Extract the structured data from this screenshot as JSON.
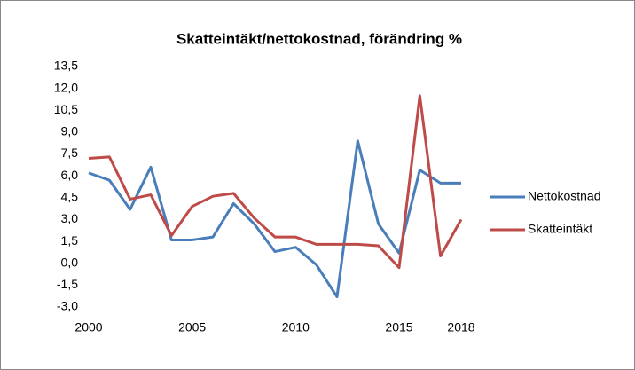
{
  "chart_data": {
    "type": "line",
    "title": "Skatteintäkt/nettokostnad, förändring %",
    "x": [
      2000,
      2001,
      2002,
      2003,
      2004,
      2005,
      2006,
      2007,
      2008,
      2009,
      2010,
      2011,
      2012,
      2013,
      2014,
      2015,
      2016,
      2017,
      2018
    ],
    "series": [
      {
        "name": "Nettokostnad",
        "color": "#4a7ebb",
        "values": [
          6.2,
          5.7,
          3.7,
          6.6,
          1.6,
          1.6,
          1.8,
          4.1,
          2.7,
          0.8,
          1.1,
          -0.1,
          -2.3,
          8.4,
          2.7,
          0.7,
          6.4,
          5.5,
          5.5
        ]
      },
      {
        "name": "Skatteintäkt",
        "color": "#be4b48",
        "values": [
          7.2,
          7.3,
          4.4,
          4.7,
          1.9,
          3.9,
          4.6,
          4.8,
          3.1,
          1.8,
          1.8,
          1.3,
          1.3,
          1.3,
          1.2,
          -0.3,
          11.5,
          0.5,
          3.0
        ]
      }
    ],
    "xlim": [
      2000,
      2018
    ],
    "xticks": [
      2000,
      2005,
      2010,
      2015,
      2018
    ],
    "ylim": [
      -3,
      13.5
    ],
    "yticks": [
      {
        "value": -3,
        "label": "-3,0"
      },
      {
        "value": -1.5,
        "label": "-1,5"
      },
      {
        "value": 0,
        "label": "0,0"
      },
      {
        "value": 1.5,
        "label": "1,5"
      },
      {
        "value": 3,
        "label": "3,0"
      },
      {
        "value": 4.5,
        "label": "4,5"
      },
      {
        "value": 6,
        "label": "6,0"
      },
      {
        "value": 7.5,
        "label": "7,5"
      },
      {
        "value": 9,
        "label": "9,0"
      },
      {
        "value": 10.5,
        "label": "10,5"
      },
      {
        "value": 12,
        "label": "12,0"
      },
      {
        "value": 13.5,
        "label": "13,5"
      }
    ],
    "grid": false,
    "legend": "right"
  }
}
